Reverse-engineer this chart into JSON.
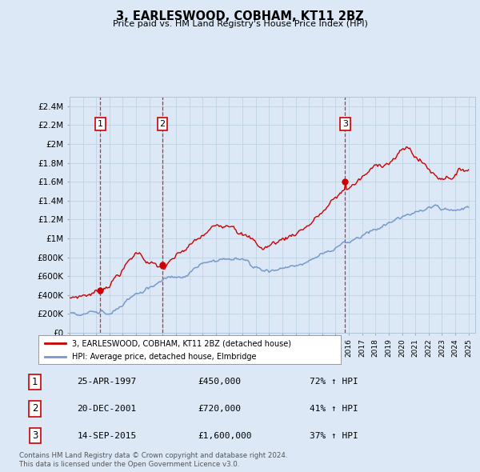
{
  "title": "3, EARLESWOOD, COBHAM, KT11 2BZ",
  "subtitle": "Price paid vs. HM Land Registry's House Price Index (HPI)",
  "ylabel_ticks": [
    "£0",
    "£200K",
    "£400K",
    "£600K",
    "£800K",
    "£1M",
    "£1.2M",
    "£1.4M",
    "£1.6M",
    "£1.8M",
    "£2M",
    "£2.2M",
    "£2.4M"
  ],
  "ytick_values": [
    0,
    200000,
    400000,
    600000,
    800000,
    1000000,
    1200000,
    1400000,
    1600000,
    1800000,
    2000000,
    2200000,
    2400000
  ],
  "xmin": 1995.0,
  "xmax": 2025.5,
  "ymin": 0,
  "ymax": 2500000,
  "sale_dates": [
    1997.31,
    2001.97,
    2015.71
  ],
  "sale_prices": [
    450000,
    720000,
    1600000
  ],
  "sale_labels": [
    "1",
    "2",
    "3"
  ],
  "hpi_color": "#7799cc",
  "price_color": "#cc0000",
  "legend_entries": [
    "3, EARLESWOOD, COBHAM, KT11 2BZ (detached house)",
    "HPI: Average price, detached house, Elmbridge"
  ],
  "table_rows": [
    [
      "1",
      "25-APR-1997",
      "£450,000",
      "72% ↑ HPI"
    ],
    [
      "2",
      "20-DEC-2001",
      "£720,000",
      "41% ↑ HPI"
    ],
    [
      "3",
      "14-SEP-2015",
      "£1,600,000",
      "37% ↑ HPI"
    ]
  ],
  "footnote": "Contains HM Land Registry data © Crown copyright and database right 2024.\nThis data is licensed under the Open Government Licence v3.0.",
  "background_color": "#dce8f5",
  "plot_bg_color": "#dce8f5"
}
